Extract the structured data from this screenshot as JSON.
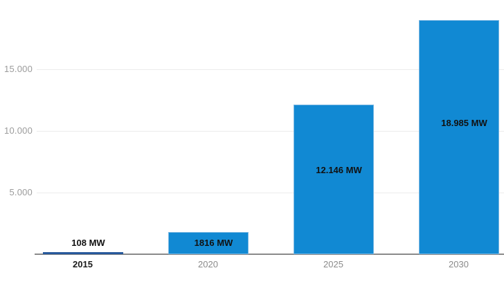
{
  "chart_data": {
    "type": "bar",
    "categories": [
      "2015",
      "2020",
      "2025",
      "2030"
    ],
    "values": [
      108,
      1816,
      12146,
      18985
    ],
    "value_labels": [
      "108 MW",
      "1816 MW",
      "12.146 MW",
      "18.985 MW"
    ],
    "unit": "MW",
    "y_ticks": [
      {
        "value": 5000,
        "label": "5.000"
      },
      {
        "value": 10000,
        "label": "10.000"
      },
      {
        "value": 15000,
        "label": "15.000"
      }
    ],
    "ylim": [
      0,
      20000
    ],
    "grid": true,
    "legend": false,
    "highlighted_category": "2015",
    "colors": {
      "background": "#ffffff",
      "bar": "#1189d3",
      "bar_border": "#7ab7e2",
      "bar_highlighted": "#27589b",
      "grid_line": "#ececec",
      "axis_line": "#8a8a8a",
      "y_tick_label": "#9b9b9b",
      "x_tick_label": "#8a8a8a",
      "x_tick_label_highlighted": "#1a1a1a",
      "value_label": "#111111"
    }
  }
}
